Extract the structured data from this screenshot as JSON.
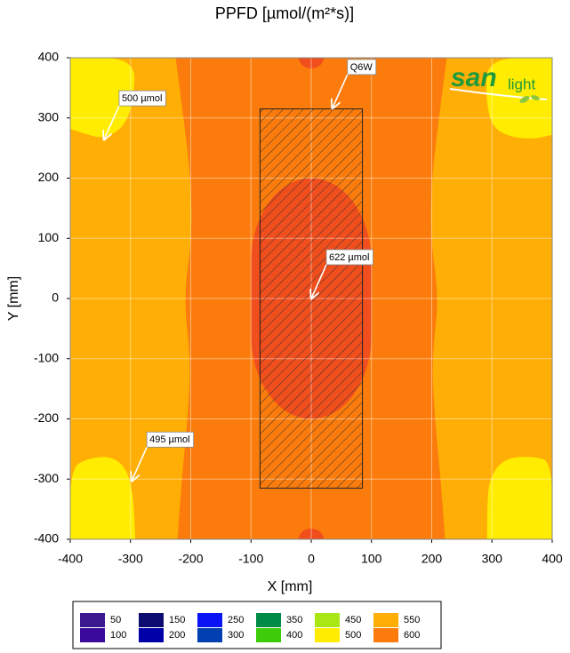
{
  "chart_data": {
    "type": "contour",
    "title": "PPFD [µmol/(m²*s)]",
    "x_label": "X [mm]",
    "y_label": "Y [mm]",
    "xlim": [
      -400,
      400
    ],
    "ylim": [
      -400,
      400
    ],
    "xticks": [
      -400,
      -300,
      -200,
      -100,
      0,
      100,
      200,
      300,
      400
    ],
    "yticks": [
      -400,
      -300,
      -200,
      -100,
      0,
      100,
      200,
      300,
      400
    ],
    "grid": true,
    "levels": [
      {
        "value": 50,
        "color": "#3b1a8f"
      },
      {
        "value": 100,
        "color": "#3a0a9a"
      },
      {
        "value": 150,
        "color": "#0c0c70"
      },
      {
        "value": 200,
        "color": "#0000a8"
      },
      {
        "value": 250,
        "color": "#0a14f5"
      },
      {
        "value": 300,
        "color": "#0040b0"
      },
      {
        "value": 350,
        "color": "#008c46"
      },
      {
        "value": 400,
        "color": "#3ccc0a"
      },
      {
        "value": 450,
        "color": "#a8e614"
      },
      {
        "value": 500,
        "color": "#ffec00"
      },
      {
        "value": 550,
        "color": "#ffae05"
      },
      {
        "value": 600,
        "color": "#fb7c0c"
      }
    ],
    "peak_color": "#f04e1c",
    "fixture": {
      "label": "Q6W",
      "x": [
        -85,
        85
      ],
      "y": [
        -315,
        315
      ]
    },
    "annotations": [
      {
        "text": "500 µmol",
        "x": -344,
        "y": 264
      },
      {
        "text": "622 µmol",
        "x": 0,
        "y": 0
      },
      {
        "text": "495 µmol",
        "x": -298,
        "y": -303
      },
      {
        "text": "Q6W",
        "x": 35,
        "y": 316
      }
    ],
    "logo": [
      "san",
      "light"
    ]
  }
}
